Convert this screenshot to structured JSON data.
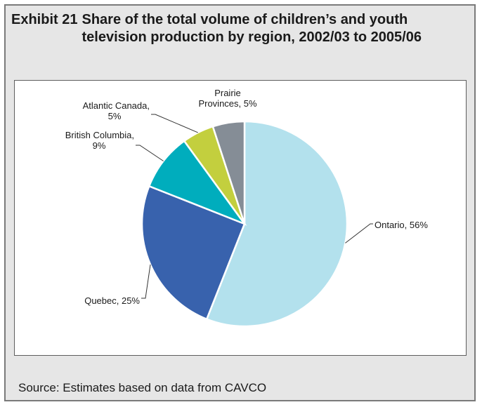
{
  "exhibit": {
    "label": "Exhibit 21",
    "title": "Share of the total volume of children’s and youth television production by region, 2002/03 to 2005/06"
  },
  "source": "Source: Estimates based on data from CAVCO",
  "colors": {
    "frame_background": "#e6e6e6",
    "frame_border": "#7a7a7a",
    "ontario": "#b3e1ed",
    "quebec": "#3862ad",
    "british_columbia": "#00adbd",
    "atlantic_canada": "#c3cf3e",
    "prairie_provinces": "#858d96"
  },
  "chart_data": {
    "type": "pie",
    "title": "Share of the total volume of children’s and youth television production by region, 2002/03 to 2005/06",
    "unit": "%",
    "slices": [
      {
        "name": "Ontario",
        "value": 56,
        "label": "Ontario, 56%",
        "color": "#b3e1ed"
      },
      {
        "name": "Quebec",
        "value": 25,
        "label": "Quebec, 25%",
        "color": "#3862ad"
      },
      {
        "name": "British Columbia",
        "value": 9,
        "label": "British Columbia,\n9%",
        "color": "#00adbd"
      },
      {
        "name": "Atlantic Canada",
        "value": 5,
        "label": "Atlantic Canada,\n5%",
        "color": "#c3cf3e"
      },
      {
        "name": "Prairie Provinces",
        "value": 5,
        "label": "Prairie\nProvinces, 5%",
        "color": "#858d96"
      }
    ]
  }
}
